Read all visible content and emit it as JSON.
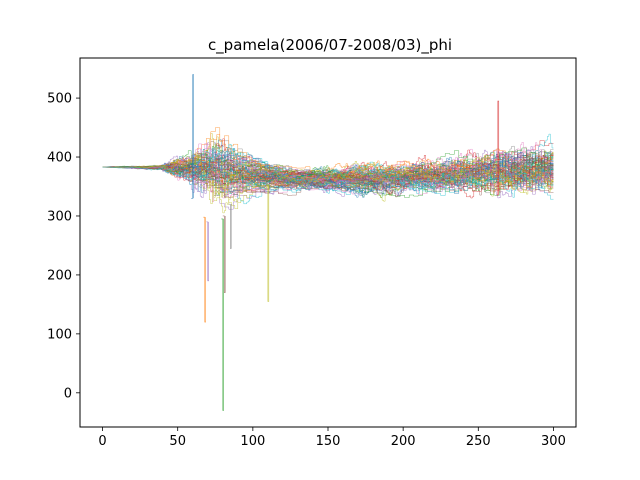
{
  "chart_data": {
    "type": "line",
    "title": "c_pamela(2006/07-2008/03)_phi",
    "xlabel": "",
    "ylabel": "",
    "xlim": [
      -15,
      315
    ],
    "ylim": [
      -58,
      568
    ],
    "x_ticks": [
      0,
      50,
      100,
      150,
      200,
      250,
      300
    ],
    "y_ticks": [
      0,
      100,
      200,
      300,
      400,
      500
    ],
    "grid": false,
    "legend": "none",
    "palette": [
      "#1f77b4",
      "#ff7f0e",
      "#2ca02c",
      "#d62728",
      "#9467bd",
      "#8c564b",
      "#e377c2",
      "#7f7f7f",
      "#bcbd22",
      "#17becf"
    ],
    "series_count": 100,
    "x_range": [
      0,
      299
    ],
    "start_value": 383,
    "envelope": {
      "x": [
        0,
        20,
        40,
        55,
        65,
        75,
        85,
        100,
        120,
        150,
        180,
        220,
        260,
        299
      ],
      "upper": [
        386,
        392,
        400,
        430,
        470,
        480,
        430,
        400,
        390,
        395,
        405,
        420,
        440,
        445
      ],
      "lower": [
        380,
        372,
        362,
        330,
        290,
        250,
        300,
        330,
        335,
        330,
        325,
        320,
        315,
        320
      ]
    },
    "spikes": [
      {
        "x": 80,
        "value": -30
      },
      {
        "x": 81,
        "value": 170
      },
      {
        "x": 110,
        "value": 155
      },
      {
        "x": 68,
        "value": 120
      },
      {
        "x": 70,
        "value": 190
      },
      {
        "x": 85,
        "value": 245
      },
      {
        "x": 60,
        "value": 540
      },
      {
        "x": 263,
        "value": 495
      }
    ]
  }
}
